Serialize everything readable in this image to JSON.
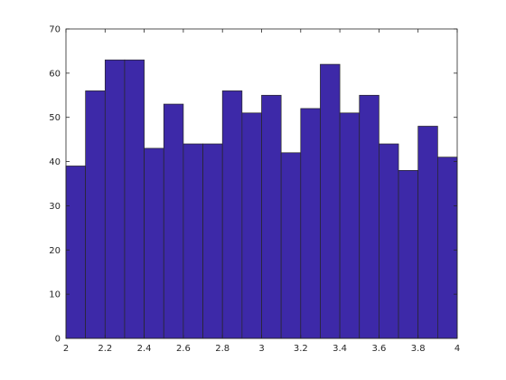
{
  "chart_data": {
    "type": "bar",
    "bin_edges": [
      2.0,
      2.1,
      2.2,
      2.3,
      2.4,
      2.5,
      2.6,
      2.7,
      2.8,
      2.9,
      3.0,
      3.1,
      3.2,
      3.3,
      3.4,
      3.5,
      3.6,
      3.7,
      3.8,
      3.9,
      4.0
    ],
    "values": [
      39,
      56,
      63,
      63,
      43,
      53,
      44,
      44,
      56,
      51,
      55,
      42,
      52,
      62,
      51,
      55,
      44,
      38,
      48,
      41
    ],
    "title": "",
    "xlabel": "",
    "ylabel": "",
    "xlim": [
      2,
      4
    ],
    "ylim": [
      0,
      70
    ],
    "xticks": [
      "2",
      "2.2",
      "2.4",
      "2.6",
      "2.8",
      "3",
      "3.2",
      "3.4",
      "3.6",
      "3.8",
      "4"
    ],
    "yticks": [
      "0",
      "10",
      "20",
      "30",
      "40",
      "50",
      "60",
      "70"
    ],
    "grid": false,
    "bar_color": "#3d29a8",
    "edge_color": "#262626"
  }
}
